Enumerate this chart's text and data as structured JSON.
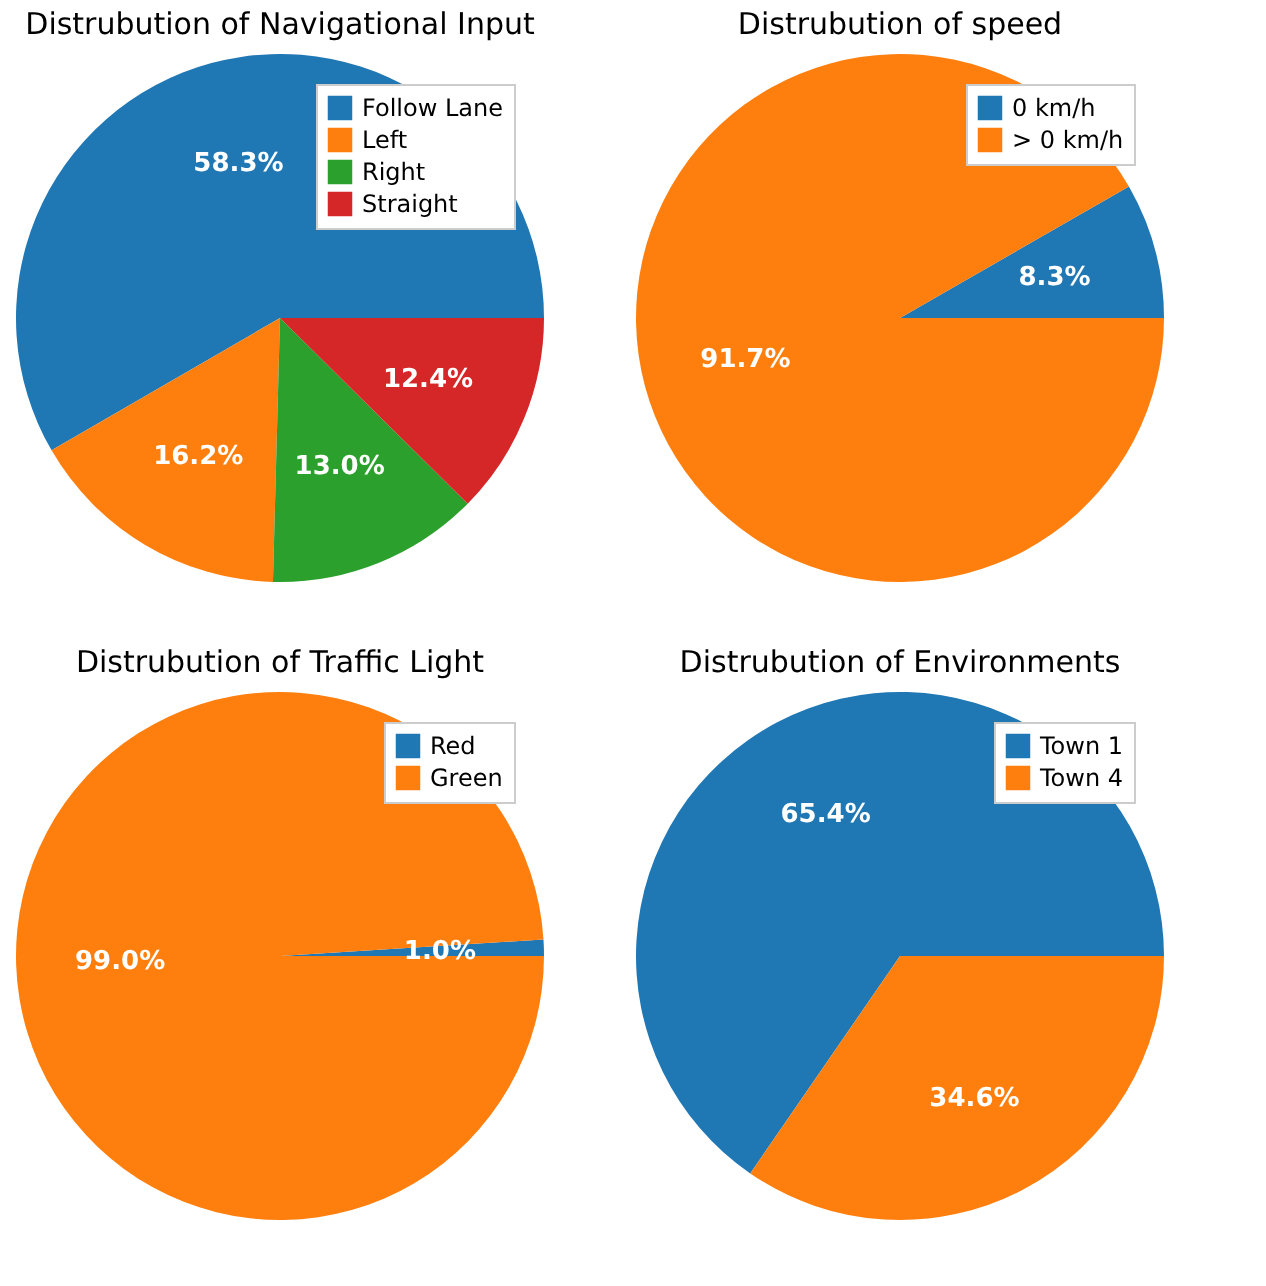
{
  "chart_data": [
    {
      "type": "pie",
      "title": "Distrubution of Navigational Input",
      "categories": [
        "Follow Lane",
        "Left",
        "Right",
        "Straight"
      ],
      "values": [
        58.3,
        16.2,
        13.0,
        12.4
      ],
      "value_labels": [
        "58.3%",
        "16.2%",
        "13.0%",
        "12.4%"
      ],
      "colors": [
        "#1f77b4",
        "#ff7f0e",
        "#2ca02c",
        "#d62728"
      ],
      "legend": "top right"
    },
    {
      "type": "pie",
      "title": "Distrubution of speed",
      "categories": [
        "0 km/h",
        "> 0 km/h"
      ],
      "values": [
        8.3,
        91.7
      ],
      "value_labels": [
        "8.3%",
        "91.7%"
      ],
      "colors": [
        "#1f77b4",
        "#ff7f0e"
      ],
      "legend": "top right"
    },
    {
      "type": "pie",
      "title": "Distrubution of Traffic Light",
      "categories": [
        "Red",
        "Green"
      ],
      "values": [
        1.0,
        99.0
      ],
      "value_labels": [
        "1.0%",
        "99.0%"
      ],
      "colors": [
        "#1f77b4",
        "#ff7f0e"
      ],
      "legend": "top right"
    },
    {
      "type": "pie",
      "title": "Distrubution of Environments",
      "categories": [
        "Town 1",
        "Town 4"
      ],
      "values": [
        65.4,
        34.6
      ],
      "value_labels": [
        "65.4%",
        "34.6%"
      ],
      "colors": [
        "#1f77b4",
        "#ff7f0e"
      ],
      "legend": "top right"
    }
  ]
}
